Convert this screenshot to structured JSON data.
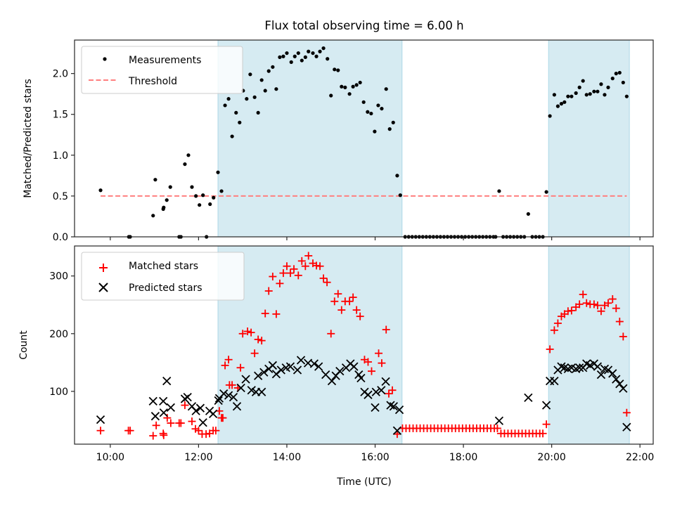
{
  "chart_data": [
    {
      "type": "scatter",
      "panel": "top",
      "title": "Flux total observing time = 6.00 h",
      "xlabel": "",
      "ylabel": "Matched/Predicted stars",
      "xlim": [
        9.19,
        22.3
      ],
      "ylim": [
        0,
        2.41
      ],
      "x_unit": "hours UTC",
      "xticks": [
        10,
        12,
        14,
        16,
        18,
        20,
        22
      ],
      "yticks": [
        0.0,
        0.5,
        1.0,
        1.5,
        2.0
      ],
      "ytick_labels": [
        "0.0",
        "0.5",
        "1.0",
        "1.5",
        "2.0"
      ],
      "grid": false,
      "legend_placement": "upper-left",
      "shaded_spans": [
        [
          12.44,
          16.61
        ],
        [
          19.93,
          21.76
        ]
      ],
      "span_color": "#add8e6",
      "series": [
        {
          "name": "Measurements",
          "marker": "dot",
          "color": "#000000",
          "x": [
            9.78,
            10.42,
            10.45,
            10.97,
            11.02,
            11.2,
            11.21,
            11.28,
            11.36,
            11.56,
            11.6,
            11.69,
            11.77,
            11.85,
            11.94,
            12.02,
            12.1,
            12.18,
            12.26,
            12.34,
            12.44,
            12.52,
            12.6,
            12.68,
            12.76,
            12.85,
            12.93,
            13.01,
            13.09,
            13.17,
            13.27,
            13.35,
            13.43,
            13.51,
            13.59,
            13.68,
            13.76,
            13.84,
            13.92,
            14.0,
            14.1,
            14.18,
            14.26,
            14.34,
            14.42,
            14.49,
            14.59,
            14.67,
            14.75,
            14.83,
            14.92,
            15.0,
            15.08,
            15.16,
            15.24,
            15.32,
            15.42,
            15.5,
            15.58,
            15.66,
            15.74,
            15.83,
            15.91,
            15.99,
            16.07,
            16.15,
            16.25,
            16.33,
            16.41,
            16.5,
            16.57,
            16.68,
            16.76,
            16.84,
            16.92,
            17.0,
            17.08,
            17.16,
            17.24,
            17.32,
            17.4,
            17.48,
            17.56,
            17.64,
            17.72,
            17.8,
            17.88,
            17.96,
            18.04,
            18.12,
            18.2,
            18.28,
            18.36,
            18.44,
            18.52,
            18.6,
            18.68,
            18.73,
            18.81,
            18.9,
            18.98,
            19.06,
            19.14,
            19.22,
            19.3,
            19.38,
            19.47,
            19.56,
            19.64,
            19.72,
            19.8,
            19.88,
            19.96,
            20.06,
            20.14,
            20.22,
            20.29,
            20.37,
            20.45,
            20.55,
            20.63,
            20.71,
            20.79,
            20.87,
            20.96,
            21.04,
            21.12,
            21.2,
            21.28,
            21.38,
            21.46,
            21.54,
            21.62,
            21.7
          ],
          "y": [
            0.57,
            0.0,
            0.0,
            0.26,
            0.7,
            0.34,
            0.36,
            0.45,
            0.61,
            0.0,
            0.0,
            0.89,
            1.0,
            0.61,
            0.5,
            0.39,
            0.51,
            0.0,
            0.4,
            0.48,
            0.79,
            0.56,
            1.61,
            1.69,
            1.23,
            1.52,
            1.4,
            1.79,
            1.69,
            1.99,
            1.71,
            1.52,
            1.92,
            1.79,
            2.03,
            2.08,
            1.81,
            2.2,
            2.21,
            2.25,
            2.14,
            2.21,
            2.25,
            2.16,
            2.2,
            2.27,
            2.25,
            2.21,
            2.27,
            2.31,
            2.18,
            1.73,
            2.05,
            2.04,
            1.84,
            1.83,
            1.75,
            1.84,
            1.86,
            1.89,
            1.65,
            1.53,
            1.51,
            1.29,
            1.61,
            1.57,
            1.81,
            1.32,
            1.4,
            0.75,
            0.51,
            0,
            0,
            0,
            0,
            0,
            0,
            0,
            0,
            0,
            0,
            0,
            0,
            0,
            0,
            0,
            0,
            0,
            0,
            0,
            0,
            0,
            0,
            0,
            0,
            0,
            0,
            0,
            0.56,
            0,
            0,
            0,
            0,
            0,
            0,
            0,
            0.28,
            0,
            0,
            0,
            0,
            0.55,
            1.48,
            1.74,
            1.6,
            1.63,
            1.65,
            1.72,
            1.72,
            1.76,
            1.83,
            1.91,
            1.74,
            1.75,
            1.78,
            1.78,
            1.87,
            1.74,
            1.83,
            1.94,
            2.0,
            2.01,
            1.89,
            1.72
          ]
        },
        {
          "name": "Threshold",
          "marker": "dashed-line",
          "color": "#ff7f7f",
          "x": [
            9.78,
            21.7
          ],
          "y": [
            0.5,
            0.5
          ]
        }
      ]
    },
    {
      "type": "scatter",
      "panel": "bottom",
      "title": "",
      "xlabel": "Time (UTC)",
      "ylabel": "Count",
      "xlim": [
        9.19,
        22.3
      ],
      "ylim": [
        8.5,
        352
      ],
      "xticks": [
        10,
        12,
        14,
        16,
        18,
        20,
        22
      ],
      "xtick_labels": [
        "10:00",
        "12:00",
        "14:00",
        "16:00",
        "18:00",
        "20:00",
        "22:00"
      ],
      "yticks": [
        100,
        200,
        300
      ],
      "ytick_labels": [
        "100",
        "200",
        "300"
      ],
      "grid": false,
      "legend_placement": "upper-left",
      "shaded_spans": [
        [
          12.44,
          16.61
        ],
        [
          19.93,
          21.76
        ]
      ],
      "span_color": "#add8e6",
      "series": [
        {
          "name": "Matched stars",
          "marker": "plus",
          "color": "#ff0000",
          "x": [
            9.78,
            10.41,
            10.45,
            10.97,
            11.04,
            11.2,
            11.21,
            11.29,
            11.37,
            11.56,
            11.6,
            11.69,
            11.85,
            11.93,
            12.0,
            12.08,
            12.17,
            12.25,
            12.33,
            12.39,
            12.47,
            12.52,
            12.55,
            12.6,
            12.68,
            12.7,
            12.76,
            12.89,
            12.95,
            13.0,
            13.11,
            13.19,
            13.27,
            13.35,
            13.43,
            13.51,
            13.59,
            13.68,
            13.76,
            13.84,
            13.92,
            14.0,
            14.08,
            14.16,
            14.26,
            14.34,
            14.42,
            14.49,
            14.59,
            14.67,
            14.75,
            14.83,
            14.91,
            15.0,
            15.08,
            15.16,
            15.24,
            15.32,
            15.42,
            15.5,
            15.58,
            15.66,
            15.76,
            15.84,
            15.92,
            16.08,
            16.15,
            16.25,
            16.31,
            16.39,
            16.5,
            16.62,
            16.7,
            16.78,
            16.86,
            16.94,
            17.02,
            17.1,
            17.18,
            17.26,
            17.34,
            17.42,
            17.5,
            17.58,
            17.66,
            17.74,
            17.82,
            17.9,
            17.98,
            18.06,
            18.14,
            18.22,
            18.3,
            18.38,
            18.46,
            18.54,
            18.62,
            18.7,
            18.77,
            18.85,
            18.93,
            19.01,
            19.09,
            19.17,
            19.25,
            19.33,
            19.41,
            19.49,
            19.57,
            19.65,
            19.73,
            19.8,
            19.88,
            19.96,
            20.06,
            20.14,
            20.22,
            20.29,
            20.37,
            20.45,
            20.55,
            20.63,
            20.71,
            20.79,
            20.87,
            20.96,
            21.04,
            21.12,
            21.2,
            21.28,
            21.38,
            21.46,
            21.54,
            21.62,
            21.7
          ],
          "y": [
            32,
            32,
            32,
            23,
            41,
            27,
            24,
            54,
            45,
            45,
            45,
            76,
            48,
            35,
            32,
            26,
            26,
            27,
            32,
            32,
            66,
            54,
            54,
            145,
            155,
            111,
            111,
            106,
            141,
            200,
            204,
            202,
            166,
            190,
            188,
            235,
            274,
            299,
            234,
            287,
            305,
            317,
            305,
            312,
            301,
            326,
            317,
            335,
            322,
            318,
            317,
            296,
            289,
            200,
            256,
            269,
            241,
            256,
            256,
            263,
            241,
            230,
            155,
            151,
            135,
            166,
            149,
            207,
            96,
            102,
            26,
            36,
            36,
            36,
            36,
            36,
            36,
            36,
            36,
            36,
            36,
            36,
            36,
            36,
            36,
            36,
            36,
            36,
            36,
            36,
            36,
            36,
            36,
            36,
            36,
            36,
            36,
            36,
            36,
            27,
            27,
            27,
            27,
            27,
            27,
            27,
            27,
            27,
            27,
            27,
            27,
            27,
            43,
            173,
            206,
            218,
            230,
            234,
            239,
            240,
            246,
            251,
            268,
            253,
            251,
            251,
            249,
            239,
            249,
            253,
            260,
            244,
            221,
            195,
            63
          ]
        },
        {
          "name": "Predicted stars",
          "marker": "x",
          "color": "#000000",
          "x": [
            9.78,
            10.97,
            11.02,
            11.2,
            11.21,
            11.28,
            11.37,
            11.69,
            11.75,
            11.85,
            11.94,
            12.04,
            12.1,
            12.25,
            12.33,
            12.45,
            12.47,
            12.57,
            12.68,
            12.79,
            12.87,
            12.96,
            13.07,
            13.2,
            13.3,
            13.35,
            13.43,
            13.48,
            13.59,
            13.68,
            13.76,
            13.87,
            13.98,
            14.08,
            14.24,
            14.32,
            14.48,
            14.62,
            14.72,
            14.88,
            15.02,
            15.11,
            15.2,
            15.34,
            15.44,
            15.52,
            15.63,
            15.68,
            15.76,
            15.84,
            16.0,
            16.02,
            16.14,
            16.24,
            16.35,
            16.42,
            16.5,
            16.55,
            18.81,
            19.47,
            19.88,
            19.96,
            20.06,
            20.14,
            20.22,
            20.29,
            20.37,
            20.45,
            20.55,
            20.63,
            20.71,
            20.79,
            20.87,
            20.96,
            21.04,
            21.12,
            21.2,
            21.28,
            21.38,
            21.46,
            21.54,
            21.62,
            21.7
          ],
          "y": [
            51,
            83,
            57,
            83,
            63,
            118,
            72,
            87,
            90,
            74,
            66,
            71,
            46,
            66,
            61,
            84,
            88,
            96,
            93,
            90,
            74,
            106,
            121,
            102,
            99,
            127,
            99,
            133,
            139,
            145,
            130,
            137,
            141,
            143,
            137,
            154,
            149,
            148,
            143,
            129,
            118,
            127,
            135,
            141,
            148,
            143,
            129,
            123,
            99,
            94,
            72,
            99,
            102,
            117,
            76,
            74,
            32,
            68,
            49,
            89,
            76,
            118,
            118,
            137,
            143,
            141,
            139,
            141,
            139,
            141,
            141,
            148,
            145,
            148,
            143,
            129,
            139,
            137,
            131,
            121,
            113,
            105,
            38
          ]
        }
      ]
    }
  ],
  "legends": {
    "top": [
      {
        "label": "Measurements",
        "marker": "dot",
        "color": "#000000"
      },
      {
        "label": "Threshold",
        "marker": "dashed-line",
        "color": "#ff7f7f"
      }
    ],
    "bottom": [
      {
        "label": "Matched stars",
        "marker": "plus",
        "color": "#ff0000"
      },
      {
        "label": "Predicted stars",
        "marker": "x",
        "color": "#000000"
      }
    ]
  }
}
